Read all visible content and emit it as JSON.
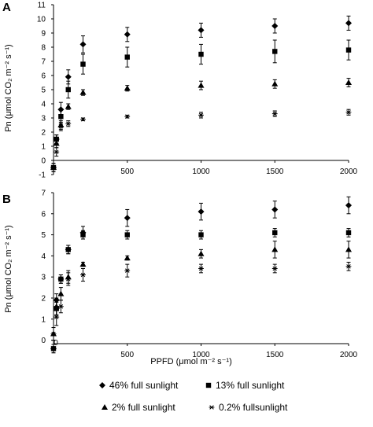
{
  "chart_data": [
    {
      "type": "scatter",
      "panel_label": "A",
      "title": "",
      "xlabel": "",
      "ylabel": "Pn (μmol CO₂ m⁻² s⁻¹)",
      "xlim": [
        0,
        2000
      ],
      "ylim": [
        -1,
        11
      ],
      "x_ticks": [
        500,
        1000,
        1500,
        2000
      ],
      "y_ticks": [
        -1,
        0,
        1,
        2,
        3,
        4,
        5,
        6,
        7,
        8,
        9,
        10,
        11
      ],
      "grid": false,
      "x": [
        0,
        20,
        50,
        100,
        200,
        500,
        1000,
        1500,
        2000
      ],
      "series": [
        {
          "name": "46% full sunlight",
          "marker": "diamond",
          "values": [
            -0.5,
            1.5,
            3.6,
            5.9,
            8.2,
            8.9,
            9.2,
            9.5,
            9.7
          ],
          "errors": [
            0.3,
            0.3,
            0.5,
            0.5,
            0.6,
            0.5,
            0.5,
            0.5,
            0.5
          ]
        },
        {
          "name": "13% full sunlight",
          "marker": "square",
          "values": [
            -0.5,
            1.5,
            3.1,
            5.0,
            6.8,
            7.3,
            7.5,
            7.7,
            7.8
          ],
          "errors": [
            0.3,
            0.3,
            0.5,
            0.6,
            0.7,
            0.7,
            0.7,
            0.8,
            0.7
          ]
        },
        {
          "name": "2% full sunlight",
          "marker": "triangle",
          "values": [
            -0.5,
            1.2,
            2.5,
            3.8,
            4.8,
            5.1,
            5.3,
            5.4,
            5.5
          ],
          "errors": [
            0.3,
            0.3,
            0.3,
            0.2,
            0.2,
            0.2,
            0.3,
            0.3,
            0.3
          ]
        },
        {
          "name": "0.2% fullsunlight",
          "marker": "asterisk",
          "values": [
            -0.5,
            0.6,
            2.4,
            2.6,
            2.9,
            3.1,
            3.2,
            3.3,
            3.4
          ],
          "errors": [
            0.3,
            0.3,
            0.3,
            0.2,
            0.1,
            0.1,
            0.2,
            0.2,
            0.2
          ]
        }
      ]
    },
    {
      "type": "scatter",
      "panel_label": "B",
      "title": "",
      "xlabel": "PPFD (μmol m⁻² s⁻¹)",
      "ylabel": "Pn (μmol CO₂ m⁻² s⁻¹)",
      "xlim": [
        0,
        2000
      ],
      "ylim": [
        -0.5,
        7
      ],
      "x_ticks": [
        500,
        1000,
        1500,
        2000
      ],
      "y_ticks": [
        0,
        1,
        2,
        3,
        4,
        5,
        6,
        7
      ],
      "origin_label": "0",
      "grid": false,
      "x": [
        0,
        20,
        50,
        100,
        200,
        500,
        1000,
        1500,
        2000
      ],
      "series": [
        {
          "name": "46% full sunlight",
          "marker": "diamond",
          "values": [
            -0.4,
            1.9,
            2.9,
            4.3,
            5.1,
            5.8,
            6.1,
            6.2,
            6.4
          ],
          "errors": [
            0.2,
            0.3,
            0.2,
            0.2,
            0.3,
            0.4,
            0.4,
            0.4,
            0.4
          ]
        },
        {
          "name": "13% full sunlight",
          "marker": "square",
          "values": [
            -0.4,
            1.5,
            2.9,
            4.3,
            5.0,
            5.0,
            5.0,
            5.1,
            5.1
          ],
          "errors": [
            0.2,
            0.3,
            0.2,
            0.2,
            0.2,
            0.2,
            0.2,
            0.2,
            0.2
          ]
        },
        {
          "name": "2% full sunlight",
          "marker": "triangle",
          "values": [
            0.3,
            1.6,
            2.2,
            3.0,
            3.6,
            3.9,
            4.1,
            4.3,
            4.3
          ],
          "errors": [
            0.3,
            0.4,
            0.3,
            0.3,
            0.1,
            0.1,
            0.2,
            0.4,
            0.4
          ]
        },
        {
          "name": "0.2% fullsunlight",
          "marker": "asterisk",
          "values": [
            0.3,
            1.1,
            1.6,
            2.9,
            3.1,
            3.3,
            3.4,
            3.4,
            3.5
          ],
          "errors": [
            0.3,
            0.4,
            0.3,
            0.3,
            0.3,
            0.3,
            0.2,
            0.2,
            0.2
          ]
        }
      ]
    }
  ],
  "legend": {
    "placement": "bottom",
    "items": [
      {
        "marker": "diamond",
        "label": "46% full sunlight"
      },
      {
        "marker": "square",
        "label": "13% full sunlight"
      },
      {
        "marker": "triangle",
        "label": "2% full sunlight"
      },
      {
        "marker": "asterisk",
        "label": "0.2% fullsunlight"
      }
    ]
  }
}
